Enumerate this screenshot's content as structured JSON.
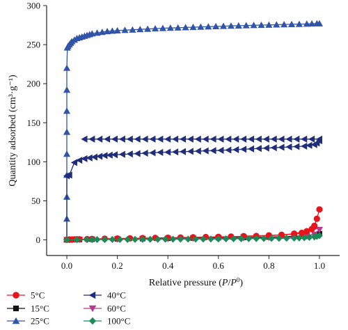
{
  "chart_data": {
    "type": "scatter",
    "xlabel": "Relative pressure (P/P⁰)",
    "xlabel_parts": [
      "Relative pressure (",
      "P",
      "/",
      "P",
      "0",
      ")"
    ],
    "ylabel": "Quantity adsorbed (cm³·g⁻¹)",
    "xlim": [
      -0.08,
      1.08
    ],
    "ylim": [
      -20,
      300
    ],
    "xticks": [
      "0.0",
      "0.2",
      "0.4",
      "0.6",
      "0.8",
      "1.0"
    ],
    "xtick_values": [
      0.0,
      0.2,
      0.4,
      0.6,
      0.8,
      1.0
    ],
    "yticks": [
      "0",
      "50",
      "100",
      "150",
      "200",
      "250",
      "300"
    ],
    "ytick_values": [
      0,
      50,
      100,
      150,
      200,
      250,
      300
    ],
    "legend_position": "bottom, outside plot, three rows by two columns",
    "series": [
      {
        "name": "5°C",
        "color": "#e8141b",
        "marker": "circle",
        "adsorption": {
          "x": [
            0.0,
            0.01,
            0.02,
            0.03,
            0.04,
            0.05,
            0.08,
            0.1,
            0.15,
            0.2,
            0.25,
            0.3,
            0.35,
            0.4,
            0.45,
            0.5,
            0.55,
            0.6,
            0.65,
            0.7,
            0.75,
            0.8,
            0.85,
            0.9,
            0.93,
            0.95,
            0.97,
            0.98,
            0.99,
            1.0
          ],
          "y": [
            0.2,
            0.4,
            0.5,
            0.6,
            0.7,
            0.8,
            1.0,
            1.2,
            1.5,
            1.8,
            2.0,
            2.3,
            2.5,
            2.8,
            3.0,
            3.3,
            3.6,
            3.9,
            4.2,
            4.6,
            5.0,
            5.5,
            6.2,
            7.5,
            9.0,
            11.0,
            14.0,
            18.0,
            27.0,
            39.0
          ]
        },
        "desorption": {
          "x": [
            0.98,
            0.95,
            0.9,
            0.85,
            0.8,
            0.7
          ],
          "y": [
            17.0,
            11.0,
            8.0,
            6.5,
            5.8,
            4.8
          ]
        }
      },
      {
        "name": "15°C",
        "color": "#111111",
        "marker": "square",
        "adsorption": {
          "x": [
            0.0,
            0.02,
            0.05,
            0.1,
            0.2,
            0.3,
            0.4,
            0.5,
            0.6,
            0.7,
            0.8,
            0.9,
            0.95,
            1.0
          ],
          "y": [
            0.1,
            0.3,
            0.5,
            0.8,
            1.2,
            1.6,
            2.0,
            2.4,
            2.8,
            3.2,
            3.7,
            4.5,
            5.5,
            8.0
          ]
        },
        "desorption": {
          "x": [],
          "y": []
        }
      },
      {
        "name": "25°C",
        "color": "#3054a8",
        "marker": "triangle-up",
        "adsorption": {
          "x": [
            0.0,
            0.0,
            0.0,
            0.0,
            0.0,
            0.0,
            0.0,
            0.0,
            0.0,
            0.002,
            0.005,
            0.01,
            0.015,
            0.02,
            0.03,
            0.04,
            0.05,
            0.06,
            0.07,
            0.08,
            0.09,
            0.1,
            0.12,
            0.14,
            0.16,
            0.18,
            0.2,
            0.23,
            0.26,
            0.29,
            0.32,
            0.35,
            0.38,
            0.41,
            0.44,
            0.47,
            0.5,
            0.53,
            0.56,
            0.59,
            0.62,
            0.65,
            0.68,
            0.71,
            0.74,
            0.77,
            0.8,
            0.83,
            0.86,
            0.89,
            0.92,
            0.95,
            0.97,
            0.99,
            1.0
          ],
          "y": [
            0.5,
            27.0,
            55.0,
            83.0,
            110.0,
            138.0,
            165.0,
            192.0,
            220.0,
            246.0,
            248.0,
            250.0,
            252.0,
            254.0,
            256.0,
            258.0,
            259.0,
            260.0,
            261.0,
            262.0,
            263.0,
            264.0,
            265.0,
            266.0,
            267.0,
            267.5,
            268.0,
            268.5,
            269.0,
            269.5,
            270.0,
            270.5,
            271.0,
            271.3,
            271.6,
            272.0,
            272.3,
            272.6,
            273.0,
            273.3,
            273.6,
            274.0,
            274.2,
            274.5,
            274.8,
            275.0,
            275.2,
            275.5,
            275.8,
            276.0,
            276.2,
            276.5,
            276.8,
            277.0,
            277.0
          ]
        },
        "desorption": {
          "x": [],
          "y": []
        }
      },
      {
        "name": "40°C",
        "color": "#1f2d7b",
        "marker": "triangle-left",
        "adsorption": {
          "x": [
            0.0,
            0.0,
            0.01,
            0.03,
            0.05,
            0.07,
            0.09,
            0.11,
            0.13,
            0.15,
            0.17,
            0.19,
            0.22,
            0.25,
            0.28,
            0.31,
            0.34,
            0.37,
            0.4,
            0.43,
            0.46,
            0.49,
            0.52,
            0.55,
            0.58,
            0.61,
            0.64,
            0.67,
            0.7,
            0.73,
            0.76,
            0.79,
            0.82,
            0.85,
            0.88,
            0.91,
            0.94,
            0.96,
            0.98,
            0.99,
            1.0
          ],
          "y": [
            0.5,
            82.0,
            83.0,
            99.0,
            102.0,
            104.0,
            105.0,
            106.0,
            107.0,
            108.0,
            108.5,
            109.0,
            109.5,
            110.0,
            110.5,
            111.0,
            111.5,
            112.0,
            112.3,
            112.6,
            113.0,
            113.3,
            113.6,
            114.0,
            114.3,
            114.6,
            115.0,
            115.5,
            116.0,
            116.5,
            117.0,
            117.5,
            118.0,
            118.5,
            119.0,
            119.5,
            120.0,
            121.0,
            122.0,
            124.0,
            127.0
          ]
        },
        "desorption": {
          "x": [
            1.0,
            0.97,
            0.94,
            0.91,
            0.88,
            0.85,
            0.82,
            0.79,
            0.76,
            0.73,
            0.7,
            0.67,
            0.64,
            0.61,
            0.58,
            0.55,
            0.52,
            0.49,
            0.46,
            0.43,
            0.4,
            0.37,
            0.34,
            0.31,
            0.28,
            0.25,
            0.22,
            0.19,
            0.16,
            0.13,
            0.1,
            0.07
          ],
          "y": [
            129.0,
            129.0,
            129.0,
            129.0,
            129.0,
            129.0,
            129.0,
            129.0,
            129.0,
            129.0,
            129.0,
            129.0,
            129.0,
            129.0,
            129.0,
            129.0,
            129.0,
            129.0,
            129.0,
            129.0,
            129.0,
            129.0,
            129.0,
            129.0,
            129.0,
            129.0,
            129.0,
            129.0,
            129.0,
            129.0,
            129.0,
            129.0
          ]
        }
      },
      {
        "name": "60°C",
        "color": "#b4398f",
        "marker": "triangle-down",
        "adsorption": {
          "x": [
            0.0,
            0.02,
            0.05,
            0.1,
            0.2,
            0.3,
            0.4,
            0.5,
            0.6,
            0.7,
            0.8,
            0.9,
            0.95,
            0.98,
            1.0
          ],
          "y": [
            0.1,
            0.2,
            0.4,
            0.6,
            0.9,
            1.2,
            1.5,
            1.8,
            2.1,
            2.5,
            2.9,
            3.5,
            4.5,
            7.0,
            13.0
          ]
        },
        "desorption": {
          "x": [],
          "y": []
        }
      },
      {
        "name": "100°C",
        "color": "#1a8a57",
        "marker": "diamond",
        "adsorption": {
          "x": [
            0.0,
            0.04,
            0.08,
            0.1,
            0.12,
            0.15,
            0.18,
            0.21,
            0.24,
            0.27,
            0.3,
            0.33,
            0.36,
            0.39,
            0.42,
            0.45,
            0.48,
            0.51,
            0.54,
            0.57,
            0.6,
            0.63,
            0.66,
            0.69,
            0.72,
            0.75,
            0.78,
            0.81,
            0.84,
            0.87,
            0.9,
            0.92,
            0.94,
            0.96,
            0.98,
            0.99,
            1.0
          ],
          "y": [
            0.1,
            0.2,
            0.3,
            0.35,
            0.4,
            0.45,
            0.5,
            0.55,
            0.6,
            0.65,
            0.7,
            0.75,
            0.8,
            0.85,
            0.9,
            0.95,
            1.0,
            1.05,
            1.1,
            1.15,
            1.2,
            1.3,
            1.4,
            1.5,
            1.6,
            1.7,
            1.8,
            1.9,
            2.0,
            2.1,
            2.3,
            2.5,
            2.8,
            3.2,
            3.8,
            4.5,
            5.5
          ]
        },
        "desorption": {
          "x": [],
          "y": []
        }
      }
    ]
  }
}
